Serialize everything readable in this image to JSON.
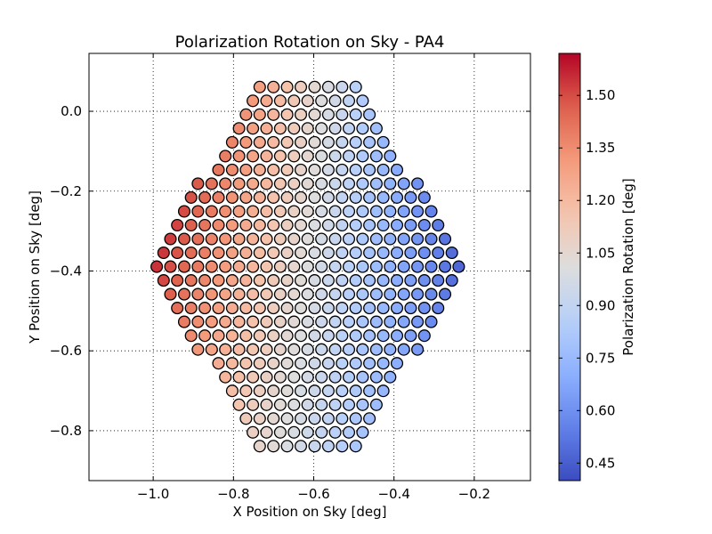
{
  "chart_data": {
    "type": "scatter",
    "title": "Polarization Rotation on Sky - PA4",
    "xlabel": "X Position on Sky [deg]",
    "ylabel": "Y Position on Sky [deg]",
    "colorbar_label": "Polarization Rotation [deg]",
    "colormap": "coolwarm",
    "xlim": [
      -1.16,
      -0.06
    ],
    "ylim": [
      -0.925,
      0.145
    ],
    "clim": [
      0.4,
      1.62
    ],
    "x_ticks": [
      -1.0,
      -0.8,
      -0.6,
      -0.4,
      -0.2
    ],
    "x_tick_labels": [
      "−1.0",
      "−0.8",
      "−0.6",
      "−0.4",
      "−0.2"
    ],
    "y_ticks": [
      0.0,
      -0.2,
      -0.4,
      -0.6,
      -0.8
    ],
    "y_tick_labels": [
      "0.0",
      "−0.2",
      "−0.4",
      "−0.6",
      "−0.8"
    ],
    "colorbar_ticks": [
      0.45,
      0.6,
      0.75,
      0.9,
      1.05,
      1.2,
      1.35,
      1.5
    ],
    "colorbar_tick_labels": [
      "0.45",
      "0.60",
      "0.75",
      "0.90",
      "1.05",
      "1.20",
      "1.35",
      "1.50"
    ],
    "grid": true,
    "hexagon_array": {
      "center": [
        -0.615,
        -0.389
      ],
      "half_width": 0.395,
      "row_spacing": 0.0346,
      "column_spacing": 0.0342,
      "value_range": [
        0.4,
        1.62
      ]
    }
  }
}
